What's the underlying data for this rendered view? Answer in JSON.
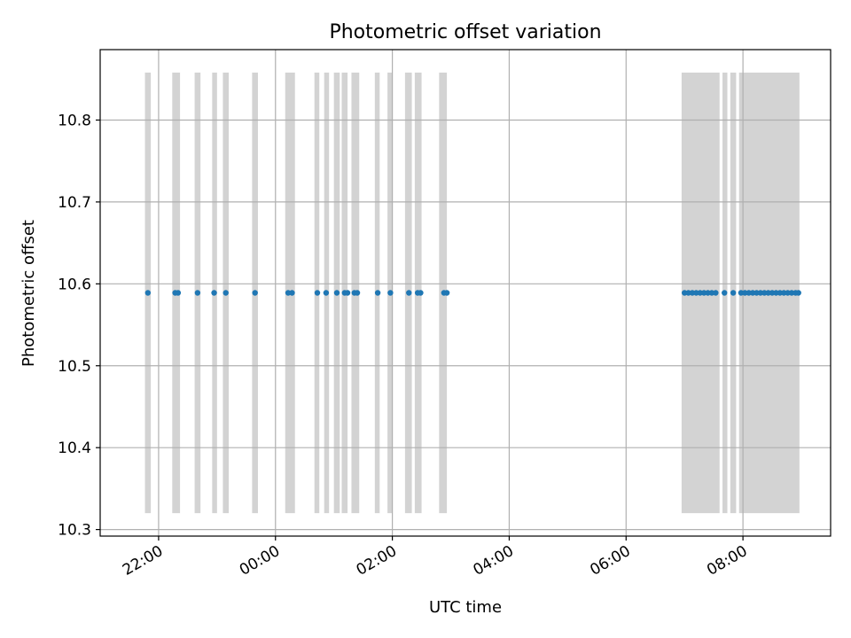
{
  "chart_data": {
    "type": "scatter",
    "title": "Photometric offset variation",
    "xlabel": "UTC time",
    "ylabel": "Photometric offset",
    "xlim": [
      "21:00",
      "09:30"
    ],
    "ylim": [
      10.292,
      10.886
    ],
    "x_ticks": [
      "22:00",
      "00:00",
      "02:00",
      "04:00",
      "06:00",
      "08:00"
    ],
    "y_ticks": [
      "10.3",
      "10.4",
      "10.5",
      "10.6",
      "10.7",
      "10.8"
    ],
    "grid": true,
    "colors": {
      "points": "#1f77b4",
      "bands": "#d3d3d3",
      "grid": "#b0b0b0"
    },
    "band_range": [
      10.32,
      10.858
    ],
    "bands": [
      [
        "21:46",
        "21:52"
      ],
      [
        "22:14",
        "22:22"
      ],
      [
        "22:37",
        "22:43"
      ],
      [
        "22:55",
        "23:00"
      ],
      [
        "23:06",
        "23:12"
      ],
      [
        "23:36",
        "23:42"
      ],
      [
        "00:10",
        "00:20"
      ],
      [
        "00:40",
        "00:45"
      ],
      [
        "00:50",
        "00:55"
      ],
      [
        "01:00",
        "01:06"
      ],
      [
        "01:08",
        "01:14"
      ],
      [
        "01:18",
        "01:26"
      ],
      [
        "01:42",
        "01:47"
      ],
      [
        "01:55",
        "02:00"
      ],
      [
        "02:13",
        "02:20"
      ],
      [
        "02:23",
        "02:30"
      ],
      [
        "02:48",
        "02:56"
      ],
      [
        "06:57",
        "07:36"
      ],
      [
        "07:39",
        "07:44"
      ],
      [
        "07:47",
        "07:53"
      ],
      [
        "07:56",
        "08:58"
      ]
    ],
    "series": [
      {
        "x": [
          "21:49",
          "22:17",
          "22:20",
          "22:40",
          "22:57",
          "23:09",
          "23:39",
          "00:13",
          "00:17",
          "00:43",
          "00:52",
          "01:03",
          "01:11",
          "01:14",
          "01:21",
          "01:24",
          "01:45",
          "01:58",
          "02:17",
          "02:26",
          "02:29",
          "02:53",
          "02:56",
          "07:00",
          "07:04",
          "07:08",
          "07:12",
          "07:16",
          "07:20",
          "07:24",
          "07:28",
          "07:32",
          "07:41",
          "07:50",
          "07:58",
          "08:02",
          "08:06",
          "08:10",
          "08:14",
          "08:18",
          "08:22",
          "08:26",
          "08:30",
          "08:34",
          "08:38",
          "08:42",
          "08:46",
          "08:50",
          "08:54",
          "08:57"
        ],
        "y": [
          10.589,
          10.589,
          10.589,
          10.589,
          10.589,
          10.589,
          10.589,
          10.589,
          10.589,
          10.589,
          10.589,
          10.589,
          10.589,
          10.589,
          10.589,
          10.589,
          10.589,
          10.589,
          10.589,
          10.589,
          10.589,
          10.589,
          10.589,
          10.589,
          10.589,
          10.589,
          10.589,
          10.589,
          10.589,
          10.589,
          10.589,
          10.589,
          10.589,
          10.589,
          10.589,
          10.589,
          10.589,
          10.589,
          10.589,
          10.589,
          10.589,
          10.589,
          10.589,
          10.589,
          10.589,
          10.589,
          10.589,
          10.589,
          10.589,
          10.589
        ]
      }
    ]
  }
}
